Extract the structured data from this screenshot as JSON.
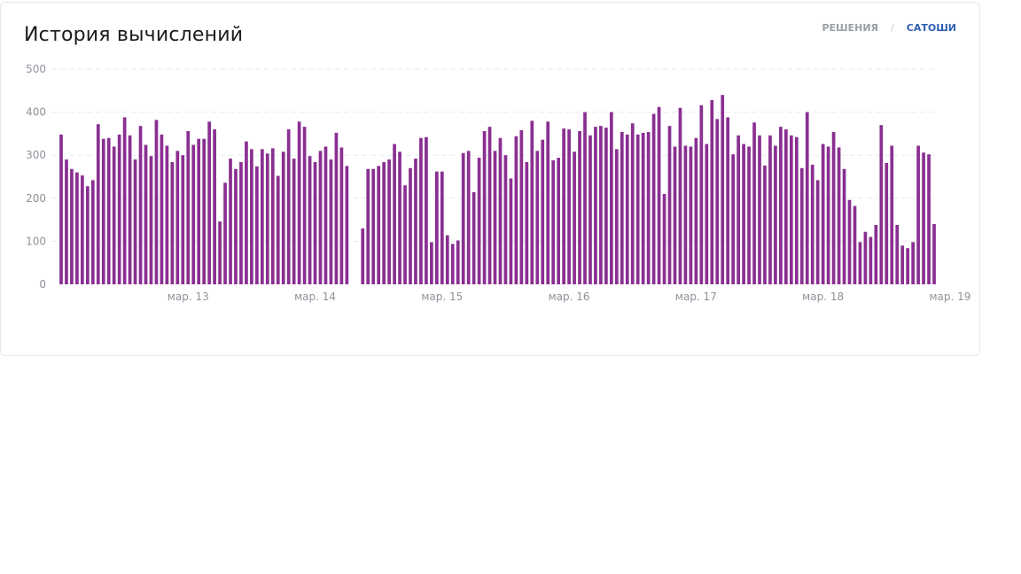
{
  "header": {
    "title": "История вычислений",
    "tabs": [
      {
        "label": "РЕШЕНИЯ",
        "active": false
      },
      {
        "label": "САТОШИ",
        "active": true
      }
    ],
    "separator": "/"
  },
  "colors": {
    "bar": "#8a2f92",
    "grid": "#e9eaee",
    "tab_active": "#2f5fb3",
    "tab_inactive": "#9a9ea6"
  },
  "chart_data": {
    "type": "bar",
    "title": "История вычислений",
    "xlabel": "",
    "ylabel": "",
    "ylim": [
      0,
      500
    ],
    "yticks": [
      0,
      100,
      200,
      300,
      400,
      500
    ],
    "grid": true,
    "x_tick_labels": [
      {
        "label": "мар. 13",
        "index": 24
      },
      {
        "label": "мар. 14",
        "index": 48
      },
      {
        "label": "мар. 15",
        "index": 72
      },
      {
        "label": "мар. 16",
        "index": 96
      },
      {
        "label": "мар. 17",
        "index": 120
      },
      {
        "label": "мар. 18",
        "index": 144
      },
      {
        "label": "мар. 19",
        "index": 168
      }
    ],
    "series": [
      {
        "values": [
          348,
          290,
          268,
          260,
          253,
          228,
          242,
          372,
          338,
          340,
          320,
          348,
          388,
          346,
          290,
          368,
          324,
          298,
          382,
          348,
          322,
          284,
          310,
          300,
          356,
          324,
          338,
          338,
          378,
          360,
          146,
          236,
          292,
          268,
          284,
          332,
          314,
          274,
          314,
          304,
          316,
          252,
          308,
          360,
          292,
          378,
          366,
          298,
          284,
          310,
          320,
          290,
          352,
          318,
          275,
          null,
          null,
          130,
          268,
          268,
          275,
          284,
          290,
          326,
          308,
          230,
          270,
          292,
          340,
          342,
          98,
          262,
          262,
          114,
          94,
          102,
          305,
          310,
          214,
          294,
          356,
          366,
          310,
          340,
          300,
          246,
          344,
          358,
          284,
          380,
          310,
          336,
          378,
          288,
          294,
          362,
          360,
          308,
          356,
          400,
          346,
          366,
          368,
          364,
          400,
          314,
          354,
          348,
          374,
          348,
          352,
          354,
          396,
          412,
          210,
          368,
          320,
          410,
          322,
          320,
          340,
          416,
          326,
          428,
          384,
          440,
          388,
          302,
          346,
          326,
          320,
          376,
          346,
          276,
          346,
          322,
          366,
          360,
          346,
          342,
          270,
          400,
          278,
          242,
          326,
          320,
          354,
          318,
          268,
          196,
          182,
          98,
          122,
          110,
          138,
          370,
          282,
          322,
          138,
          90,
          84,
          98,
          322,
          306,
          302,
          140
        ]
      }
    ]
  }
}
